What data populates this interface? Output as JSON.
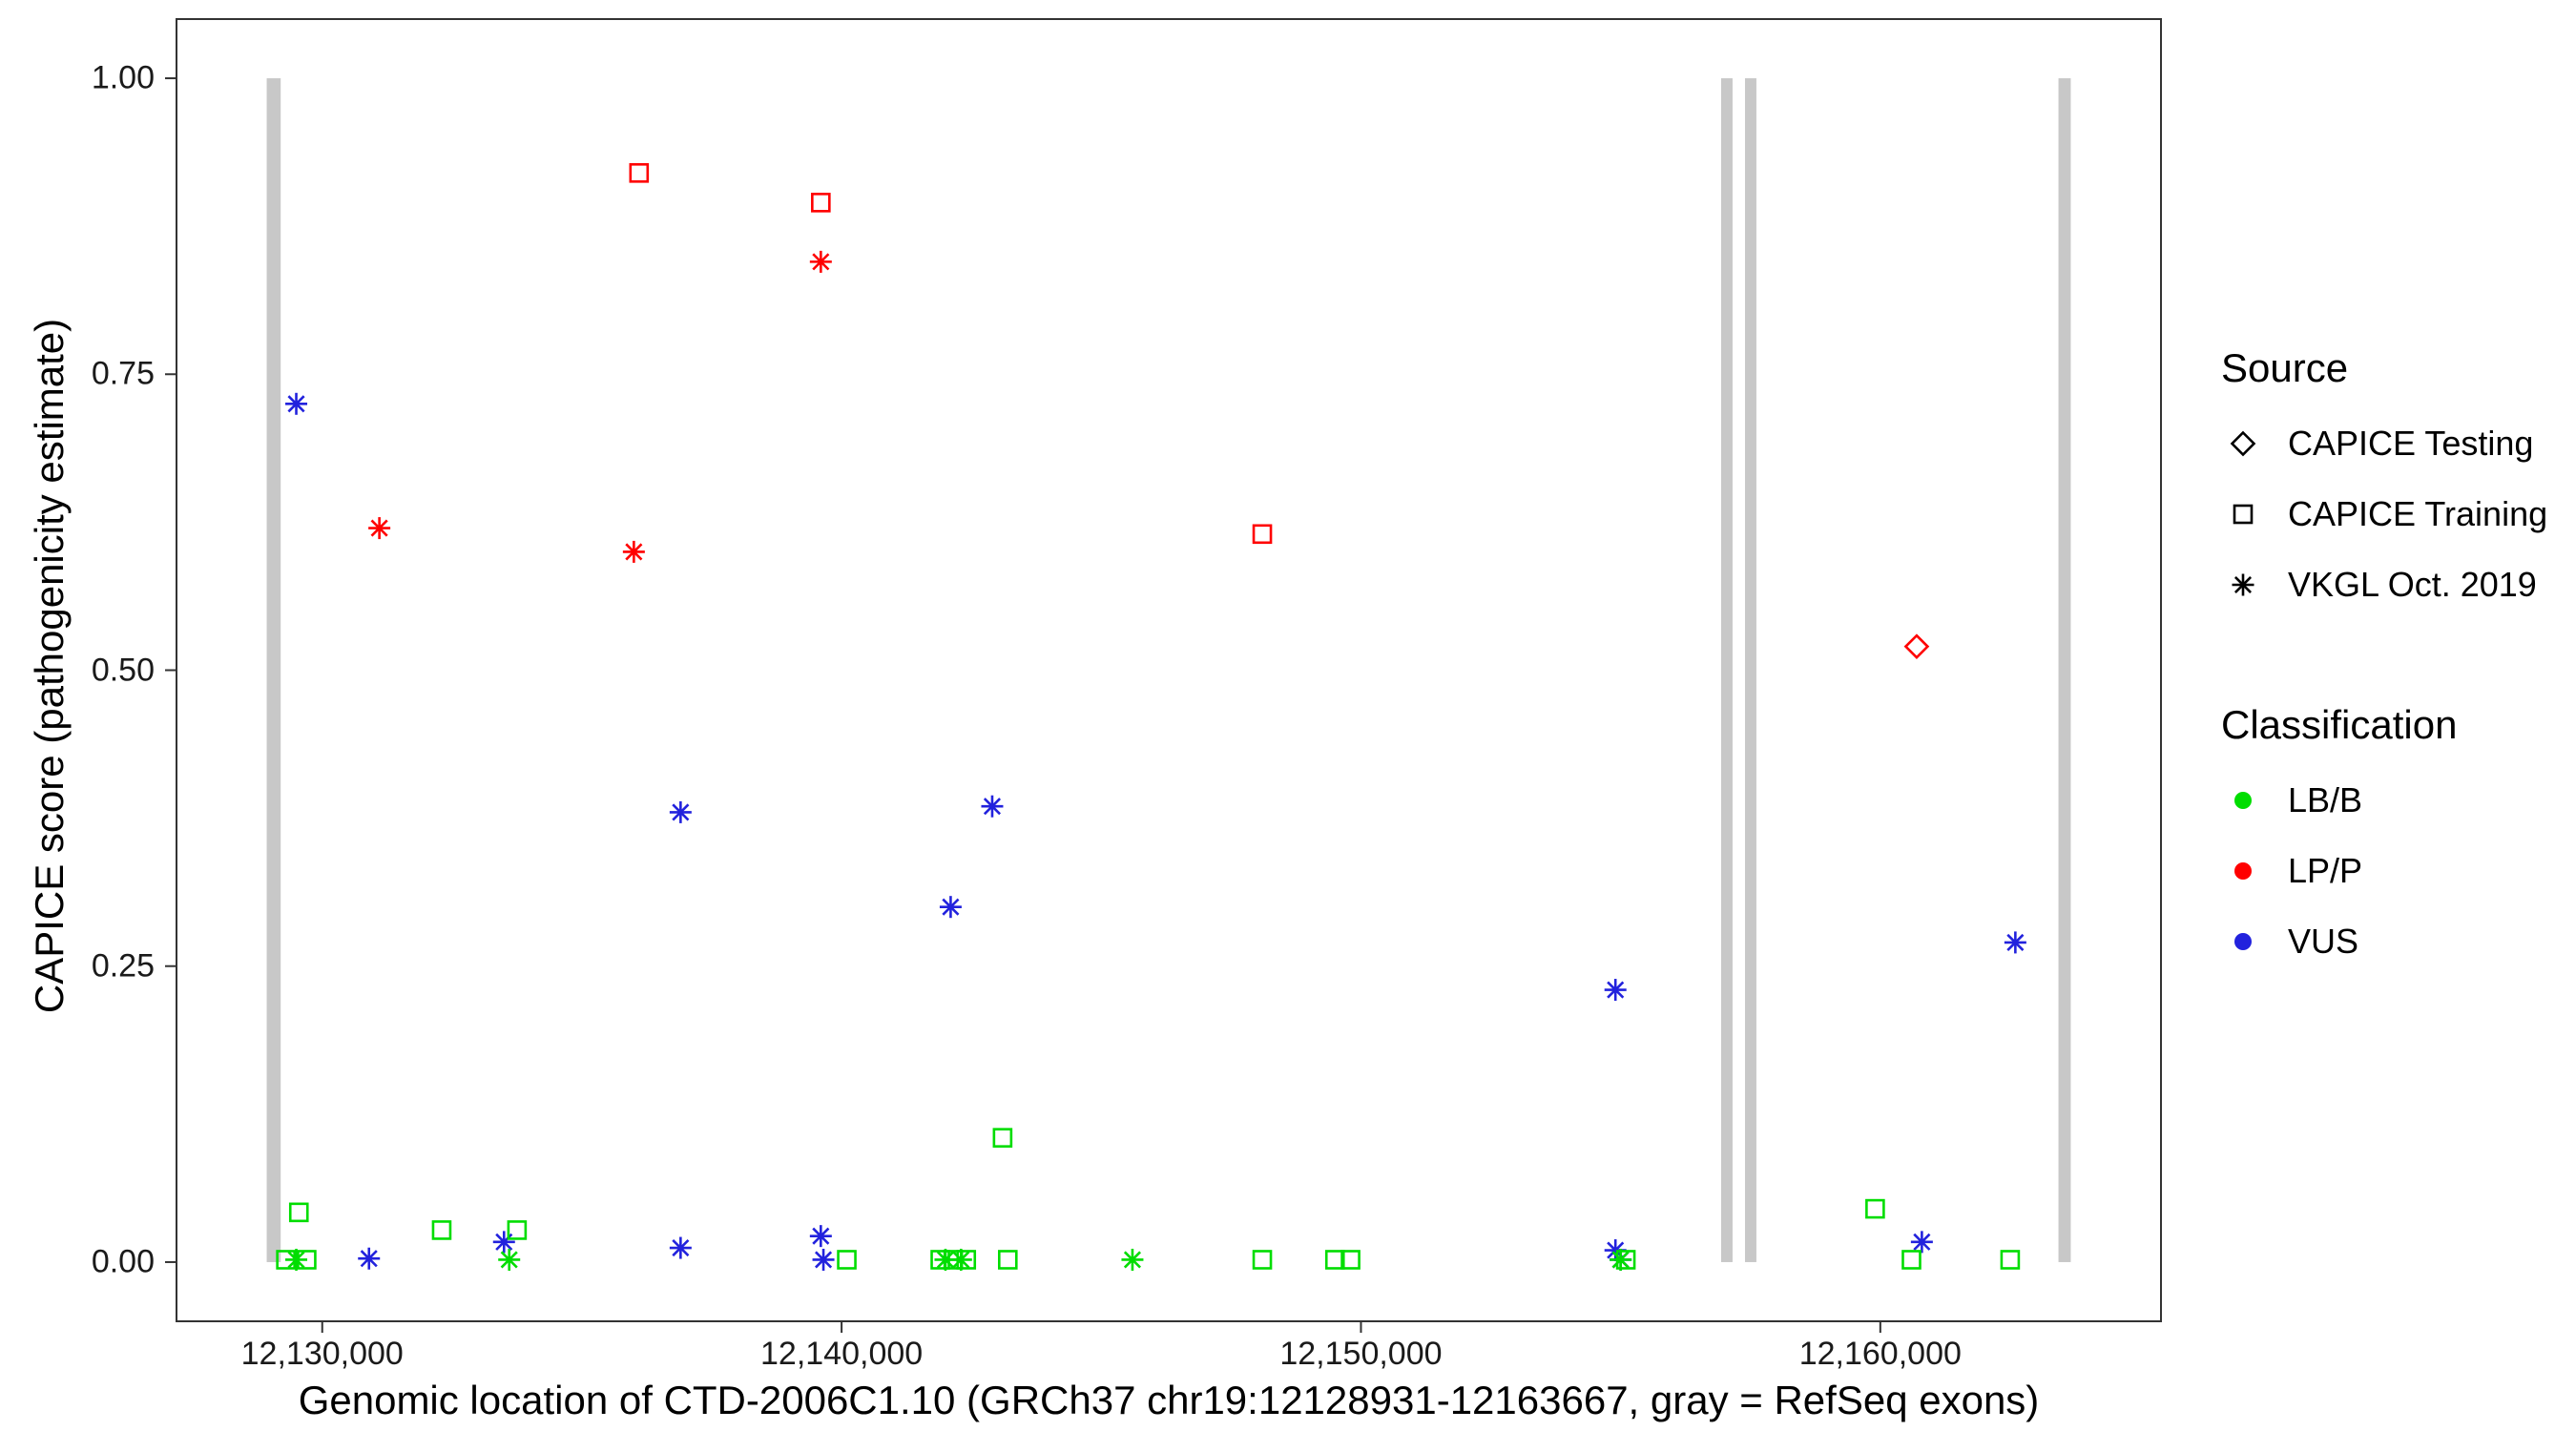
{
  "chart_data": {
    "type": "scatter",
    "xlabel": "Genomic location of CTD-2006C1.10 (GRCh37 chr19:12128931-12163667, gray = RefSeq exons)",
    "ylabel": "CAPICE score (pathogenicity estimate)",
    "x_domain": [
      12127194,
      12165404
    ],
    "y_domain": [
      -0.05,
      1.05
    ],
    "x_ticks": [
      {
        "value": 12130000,
        "label": "12,130,000"
      },
      {
        "value": 12140000,
        "label": "12,140,000"
      },
      {
        "value": 12150000,
        "label": "12,150,000"
      },
      {
        "value": 12160000,
        "label": "12,160,000"
      }
    ],
    "y_ticks": [
      {
        "value": 0,
        "label": "0.00"
      },
      {
        "value": 0.25,
        "label": "0.25"
      },
      {
        "value": 0.5,
        "label": "0.50"
      },
      {
        "value": 0.75,
        "label": "0.75"
      },
      {
        "value": 1,
        "label": "1.00"
      }
    ],
    "grid": "off",
    "exon_color": "#C8C8C8",
    "exons": [
      {
        "start": 12128931,
        "end": 12129200
      },
      {
        "start": 12156935,
        "end": 12157155
      },
      {
        "start": 12157394,
        "end": 12157614
      },
      {
        "start": 12163430,
        "end": 12163667
      }
    ],
    "colors": {
      "LB/B": "#00DD00",
      "LP/P": "#FF0000",
      "VUS": "#2222DD"
    },
    "marker_by_source": {
      "CAPICE Testing": "diamond",
      "CAPICE Training": "square",
      "VKGL Oct. 2019": "asterisk"
    },
    "points": [
      {
        "x": 12136100,
        "y": 0.92,
        "source": "CAPICE Training",
        "classification": "LP/P"
      },
      {
        "x": 12139600,
        "y": 0.895,
        "source": "CAPICE Training",
        "classification": "LP/P"
      },
      {
        "x": 12148100,
        "y": 0.615,
        "source": "CAPICE Training",
        "classification": "LP/P"
      },
      {
        "x": 12131100,
        "y": 0.62,
        "source": "VKGL Oct. 2019",
        "classification": "LP/P"
      },
      {
        "x": 12136000,
        "y": 0.6,
        "source": "VKGL Oct. 2019",
        "classification": "LP/P"
      },
      {
        "x": 12139600,
        "y": 0.845,
        "source": "VKGL Oct. 2019",
        "classification": "LP/P"
      },
      {
        "x": 12160700,
        "y": 0.52,
        "source": "CAPICE Testing",
        "classification": "LP/P"
      },
      {
        "x": 12129500,
        "y": 0.725,
        "source": "VKGL Oct. 2019",
        "classification": "VUS"
      },
      {
        "x": 12136900,
        "y": 0.38,
        "source": "VKGL Oct. 2019",
        "classification": "VUS"
      },
      {
        "x": 12142100,
        "y": 0.3,
        "source": "VKGL Oct. 2019",
        "classification": "VUS"
      },
      {
        "x": 12142900,
        "y": 0.385,
        "source": "VKGL Oct. 2019",
        "classification": "VUS"
      },
      {
        "x": 12154900,
        "y": 0.23,
        "source": "VKGL Oct. 2019",
        "classification": "VUS"
      },
      {
        "x": 12162600,
        "y": 0.27,
        "source": "VKGL Oct. 2019",
        "classification": "VUS"
      },
      {
        "x": 12130900,
        "y": 0.003,
        "source": "VKGL Oct. 2019",
        "classification": "VUS"
      },
      {
        "x": 12133500,
        "y": 0.017,
        "source": "VKGL Oct. 2019",
        "classification": "VUS"
      },
      {
        "x": 12136900,
        "y": 0.012,
        "source": "VKGL Oct. 2019",
        "classification": "VUS"
      },
      {
        "x": 12139600,
        "y": 0.022,
        "source": "VKGL Oct. 2019",
        "classification": "VUS"
      },
      {
        "x": 12139650,
        "y": 0.002,
        "source": "VKGL Oct. 2019",
        "classification": "VUS"
      },
      {
        "x": 12154900,
        "y": 0.01,
        "source": "VKGL Oct. 2019",
        "classification": "VUS"
      },
      {
        "x": 12155000,
        "y": 0.002,
        "source": "VKGL Oct. 2019",
        "classification": "VUS"
      },
      {
        "x": 12160800,
        "y": 0.017,
        "source": "VKGL Oct. 2019",
        "classification": "VUS"
      },
      {
        "x": 12129550,
        "y": 0.042,
        "source": "CAPICE Training",
        "classification": "LB/B"
      },
      {
        "x": 12129300,
        "y": 0.002,
        "source": "CAPICE Training",
        "classification": "LB/B"
      },
      {
        "x": 12129700,
        "y": 0.002,
        "source": "CAPICE Training",
        "classification": "LB/B"
      },
      {
        "x": 12132300,
        "y": 0.027,
        "source": "CAPICE Training",
        "classification": "LB/B"
      },
      {
        "x": 12133750,
        "y": 0.027,
        "source": "CAPICE Training",
        "classification": "LB/B"
      },
      {
        "x": 12140100,
        "y": 0.002,
        "source": "CAPICE Training",
        "classification": "LB/B"
      },
      {
        "x": 12141900,
        "y": 0.002,
        "source": "CAPICE Training",
        "classification": "LB/B"
      },
      {
        "x": 12142150,
        "y": 0.002,
        "source": "CAPICE Training",
        "classification": "LB/B"
      },
      {
        "x": 12142400,
        "y": 0.002,
        "source": "CAPICE Training",
        "classification": "LB/B"
      },
      {
        "x": 12143100,
        "y": 0.105,
        "source": "CAPICE Training",
        "classification": "LB/B"
      },
      {
        "x": 12143200,
        "y": 0.002,
        "source": "CAPICE Training",
        "classification": "LB/B"
      },
      {
        "x": 12148100,
        "y": 0.002,
        "source": "CAPICE Training",
        "classification": "LB/B"
      },
      {
        "x": 12149500,
        "y": 0.002,
        "source": "CAPICE Training",
        "classification": "LB/B"
      },
      {
        "x": 12149800,
        "y": 0.002,
        "source": "CAPICE Training",
        "classification": "LB/B"
      },
      {
        "x": 12155100,
        "y": 0.002,
        "source": "CAPICE Training",
        "classification": "LB/B"
      },
      {
        "x": 12159900,
        "y": 0.045,
        "source": "CAPICE Training",
        "classification": "LB/B"
      },
      {
        "x": 12160600,
        "y": 0.002,
        "source": "CAPICE Training",
        "classification": "LB/B"
      },
      {
        "x": 12162500,
        "y": 0.002,
        "source": "CAPICE Training",
        "classification": "LB/B"
      },
      {
        "x": 12129500,
        "y": 0.002,
        "source": "VKGL Oct. 2019",
        "classification": "LB/B"
      },
      {
        "x": 12133600,
        "y": 0.002,
        "source": "VKGL Oct. 2019",
        "classification": "LB/B"
      },
      {
        "x": 12142000,
        "y": 0.002,
        "source": "VKGL Oct. 2019",
        "classification": "LB/B"
      },
      {
        "x": 12142300,
        "y": 0.002,
        "source": "VKGL Oct. 2019",
        "classification": "LB/B"
      },
      {
        "x": 12145600,
        "y": 0.002,
        "source": "VKGL Oct. 2019",
        "classification": "LB/B"
      },
      {
        "x": 12155000,
        "y": 0.002,
        "source": "VKGL Oct. 2019",
        "classification": "LB/B"
      }
    ],
    "legend": {
      "source_title": "Source",
      "source_items": [
        {
          "label": "CAPICE Testing",
          "marker": "diamond-icon"
        },
        {
          "label": "CAPICE Training",
          "marker": "square-icon"
        },
        {
          "label": "VKGL Oct. 2019",
          "marker": "asterisk-icon"
        }
      ],
      "classification_title": "Classification",
      "classification_items": [
        {
          "label": "LB/B",
          "color": "#00DD00"
        },
        {
          "label": "LP/P",
          "color": "#FF0000"
        },
        {
          "label": "VUS",
          "color": "#2222DD"
        }
      ]
    }
  }
}
